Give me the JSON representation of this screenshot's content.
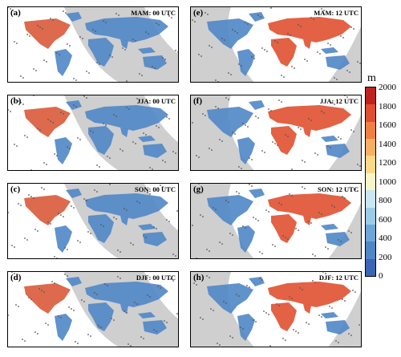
{
  "panels": [
    {
      "id": "a",
      "label": "(a)",
      "title": "MAM: 00 UTC",
      "col": 0,
      "row": 0,
      "night": "day-left"
    },
    {
      "id": "b",
      "label": "(b)",
      "title": "JJA: 00 UTC",
      "col": 0,
      "row": 1,
      "night": "day-left"
    },
    {
      "id": "c",
      "label": "(c)",
      "title": "SON: 00 UTC",
      "col": 0,
      "row": 2,
      "night": "day-left"
    },
    {
      "id": "d",
      "label": "(d)",
      "title": "DJF: 00 UTC",
      "col": 0,
      "row": 3,
      "night": "day-left"
    },
    {
      "id": "e",
      "label": "(e)",
      "title": "MAM: 12 UTC",
      "col": 1,
      "row": 0,
      "night": "day-right"
    },
    {
      "id": "f",
      "label": "(f)",
      "title": "JJA: 12 UTC",
      "col": 1,
      "row": 1,
      "night": "day-right"
    },
    {
      "id": "g",
      "label": "(g)",
      "title": "SON: 12 UTC",
      "col": 1,
      "row": 2,
      "night": "day-right"
    },
    {
      "id": "h",
      "label": "(h)",
      "title": "DJF: 12 UTC",
      "col": 1,
      "row": 3,
      "night": "day-right"
    }
  ],
  "colorbar": {
    "unit": "m",
    "labels": [
      "2000",
      "1800",
      "1600",
      "1400",
      "1200",
      "1000",
      "800",
      "600",
      "400",
      "200",
      "0"
    ],
    "colors": [
      "#3a64b4",
      "#4f86c6",
      "#6ea6d6",
      "#9ccbe6",
      "#c9e6f2",
      "#f5f5c8",
      "#fbd88a",
      "#f7b062",
      "#ef7f43",
      "#df4e2e",
      "#c0211f"
    ]
  },
  "colors": {
    "night": "#cfcfcf",
    "land_low": "#4f86c6",
    "land_high": "#e05030"
  }
}
